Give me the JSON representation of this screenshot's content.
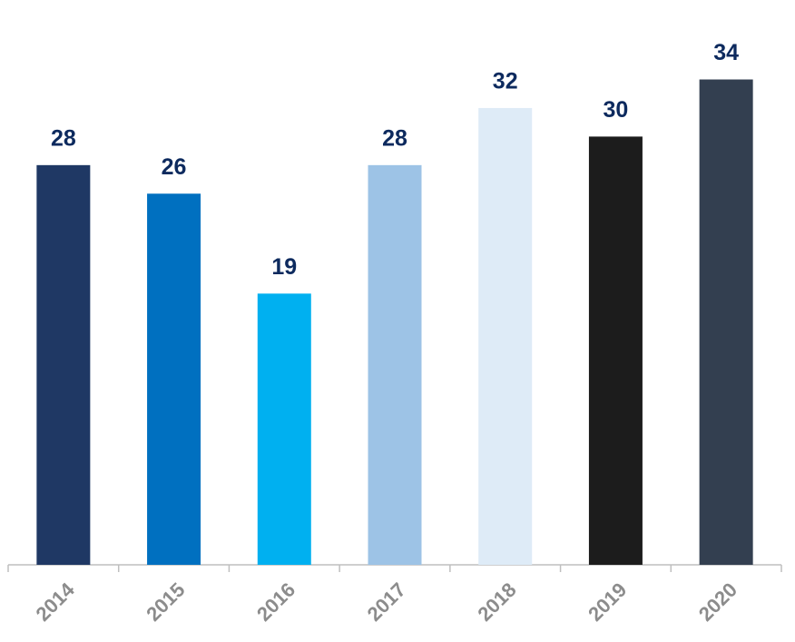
{
  "chart_data": {
    "type": "bar",
    "categories": [
      "2014",
      "2015",
      "2016",
      "2017",
      "2018",
      "2019",
      "2020"
    ],
    "values": [
      28,
      26,
      19,
      28,
      32,
      30,
      34
    ],
    "colors": [
      "#1f3864",
      "#0070c0",
      "#00b0f0",
      "#9dc3e6",
      "#deebf7",
      "#1c1c1c",
      "#333f50"
    ]
  }
}
